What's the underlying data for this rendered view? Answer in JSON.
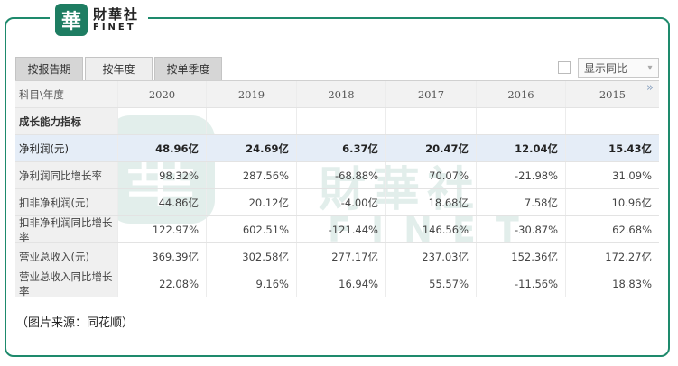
{
  "logo": {
    "mark": "華",
    "cn": "財華社",
    "en": "FINET"
  },
  "tabs": [
    "按报告期",
    "按年度",
    "按单季度"
  ],
  "toggle": {
    "label": "显示同比"
  },
  "table": {
    "corner": "科目\\年度",
    "years": [
      "2020",
      "2019",
      "2018",
      "2017",
      "2016",
      "2015"
    ],
    "nav_arrow": "»",
    "section": "成长能力指标",
    "rows": [
      {
        "label": "净利润(元)",
        "values": [
          "48.96亿",
          "24.69亿",
          "6.37亿",
          "20.47亿",
          "12.04亿",
          "15.43亿"
        ]
      },
      {
        "label": "净利润同比增长率",
        "values": [
          "98.32%",
          "287.56%",
          "-68.88%",
          "70.07%",
          "-21.98%",
          "31.09%"
        ]
      },
      {
        "label": "扣非净利润(元)",
        "values": [
          "44.86亿",
          "20.12亿",
          "-4.00亿",
          "18.68亿",
          "7.58亿",
          "10.96亿"
        ]
      },
      {
        "label": "扣非净利润同比增长率",
        "values": [
          "122.97%",
          "602.51%",
          "-121.44%",
          "146.56%",
          "-30.87%",
          "62.68%"
        ]
      },
      {
        "label": "营业总收入(元)",
        "values": [
          "369.39亿",
          "302.58亿",
          "277.17亿",
          "237.03亿",
          "152.36亿",
          "172.27亿"
        ]
      },
      {
        "label": "营业总收入同比增长率",
        "values": [
          "22.08%",
          "9.16%",
          "16.94%",
          "55.57%",
          "-11.56%",
          "18.83%"
        ]
      }
    ]
  },
  "footnote": "（图片来源：同花顺）",
  "colors": {
    "brand": "#1e8a6c",
    "highlight_row": "#e5edf7"
  }
}
